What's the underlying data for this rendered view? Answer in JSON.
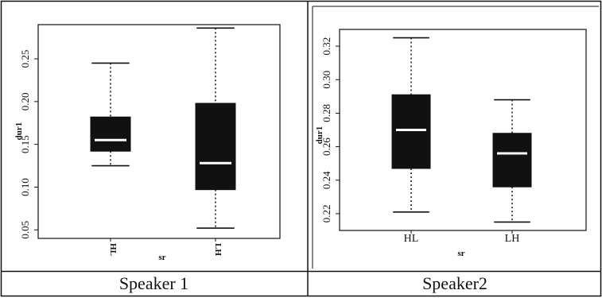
{
  "captions": {
    "left": "Speaker 1",
    "right": "Speaker2"
  },
  "chart_data": [
    {
      "type": "box",
      "title": "",
      "xlabel": "sr",
      "ylabel": "dur1",
      "categories": [
        "HL",
        "LH"
      ],
      "ylim": [
        0.04,
        0.29
      ],
      "yticks": [
        "0.05",
        "0.10",
        "0.15",
        "0.20",
        "0.25"
      ],
      "boxes": [
        {
          "category": "HL",
          "whisker_low": 0.125,
          "q1": 0.142,
          "median": 0.155,
          "q3": 0.182,
          "whisker_high": 0.245
        },
        {
          "category": "LH",
          "whisker_low": 0.052,
          "q1": 0.097,
          "median": 0.128,
          "q3": 0.198,
          "whisker_high": 0.286
        }
      ],
      "grid": false,
      "legend": "none"
    },
    {
      "type": "box",
      "title": "",
      "xlabel": "sr",
      "ylabel": "dur1",
      "categories": [
        "HL",
        "LH"
      ],
      "ylim": [
        0.21,
        0.33
      ],
      "yticks": [
        "0.22",
        "0.24",
        "0.26",
        "0.28",
        "0.30",
        "0.32"
      ],
      "boxes": [
        {
          "category": "HL",
          "whisker_low": 0.221,
          "q1": 0.247,
          "median": 0.27,
          "q3": 0.291,
          "whisker_high": 0.325
        },
        {
          "category": "LH",
          "whisker_low": 0.215,
          "q1": 0.236,
          "median": 0.256,
          "q3": 0.268,
          "whisker_high": 0.288
        }
      ],
      "grid": false,
      "legend": "none"
    }
  ]
}
